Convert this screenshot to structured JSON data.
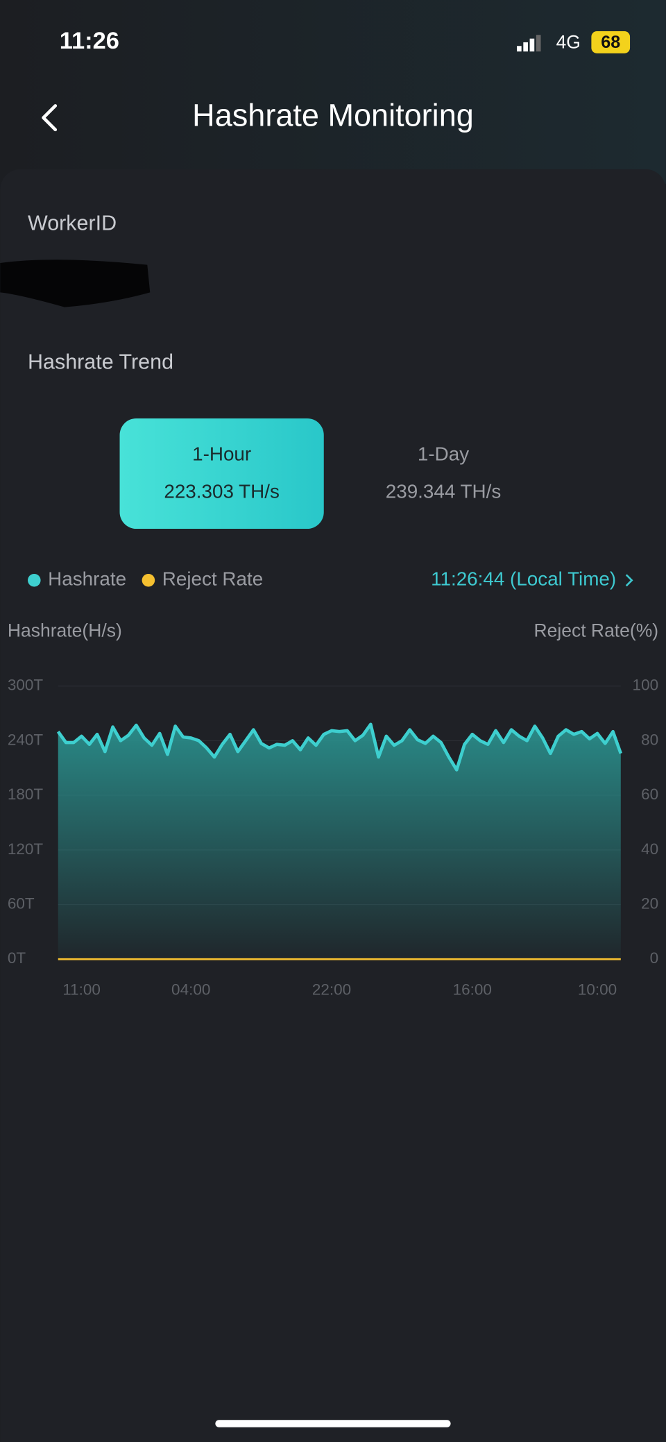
{
  "status_bar": {
    "time": "11:26",
    "network": "4G",
    "battery": "68"
  },
  "header": {
    "title": "Hashrate Monitoring"
  },
  "worker_label": "WorkerID",
  "trend_label": "Hashrate Trend",
  "tabs": [
    {
      "label": "1-Hour",
      "value": "223.303 TH/s"
    },
    {
      "label": "1-Day",
      "value": "239.344 TH/s"
    }
  ],
  "timestamp": "11:26:44 (Local Time)",
  "chart": {
    "type": "line",
    "y_label": "Hashrate(H/s)",
    "y2_label": "Reject Rate(%)",
    "ylim": [
      0,
      300
    ],
    "yticks": [
      {
        "value": 0,
        "label": "0T"
      },
      {
        "value": 60,
        "label": "60T"
      },
      {
        "value": 120,
        "label": "120T"
      },
      {
        "value": 180,
        "label": "180T"
      },
      {
        "value": 240,
        "label": "240T"
      },
      {
        "value": 300,
        "label": "300T"
      }
    ],
    "y2lim": [
      0,
      100
    ],
    "y2ticks": [
      0,
      20,
      40,
      60,
      80,
      100
    ],
    "grid": true,
    "categories": [
      null,
      null,
      null,
      "11:00",
      null,
      null,
      null,
      null,
      null,
      null,
      null,
      null,
      null,
      null,
      null,
      null,
      null,
      "04:00",
      null,
      null,
      null,
      null,
      null,
      null,
      null,
      null,
      null,
      null,
      null,
      null,
      null,
      null,
      null,
      null,
      null,
      "22:00",
      null,
      null,
      null,
      null,
      null,
      null,
      null,
      null,
      null,
      null,
      null,
      null,
      null,
      null,
      null,
      null,
      null,
      "16:00",
      null,
      null,
      null,
      null,
      null,
      null,
      null,
      null,
      null,
      null,
      null,
      null,
      null,
      null,
      null,
      "10:00",
      null,
      null,
      null
    ],
    "series": [
      {
        "name": "Hashrate",
        "color": "#3ecfcf",
        "values": [
          250,
          238,
          238,
          245,
          236,
          247,
          228,
          255,
          240,
          246,
          257,
          243,
          235,
          248,
          225,
          256,
          244,
          243,
          240,
          232,
          222,
          236,
          247,
          228,
          240,
          252,
          237,
          232,
          236,
          235,
          240,
          230,
          243,
          235,
          247,
          251,
          250,
          251,
          240,
          246,
          258,
          222,
          245,
          235,
          240,
          252,
          241,
          237,
          245,
          238,
          222,
          208,
          236,
          247,
          240,
          236,
          251,
          238,
          252,
          245,
          240,
          256,
          243,
          226,
          245,
          252,
          247,
          250,
          242,
          248,
          237,
          250,
          226
        ]
      },
      {
        "name": "Reject Rate",
        "color": "#f5c030",
        "axis": "y2",
        "values": [
          0,
          0,
          0,
          0,
          0,
          0,
          0,
          0,
          0,
          0,
          0,
          0,
          0,
          0,
          0,
          0,
          0,
          0,
          0,
          0,
          0,
          0,
          0,
          0,
          0,
          0,
          0,
          0,
          0,
          0,
          0,
          0,
          0,
          0,
          0,
          0,
          0,
          0,
          0,
          0,
          0,
          0,
          0,
          0,
          0,
          0,
          0,
          0,
          0,
          0,
          0,
          0,
          0,
          0,
          0,
          0,
          0,
          0,
          0,
          0,
          0,
          0,
          0,
          0,
          0,
          0,
          0,
          0,
          0,
          0,
          0,
          0,
          0
        ]
      }
    ]
  }
}
